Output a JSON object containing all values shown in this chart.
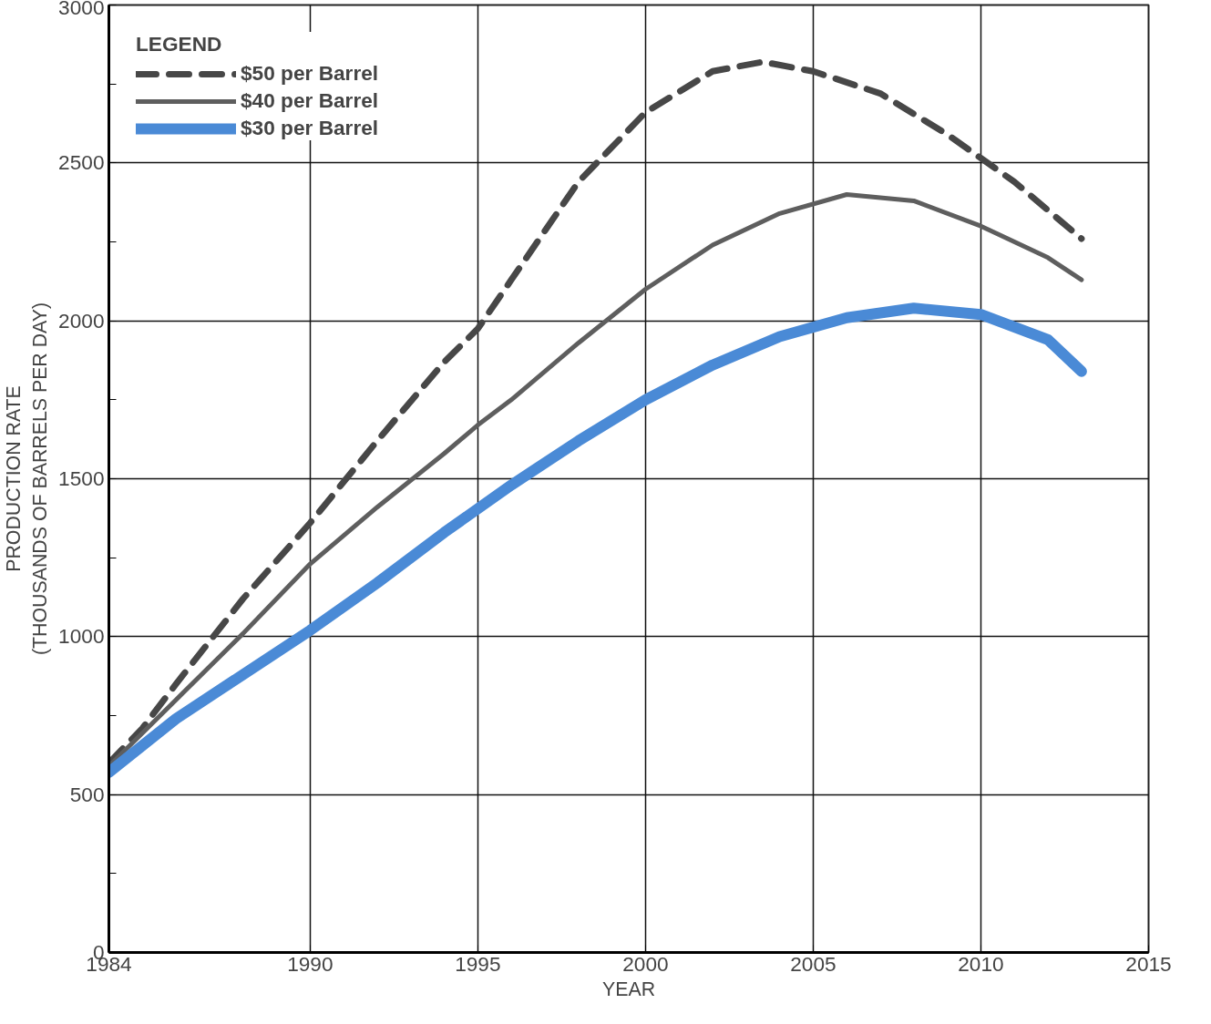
{
  "chart_data": {
    "type": "line",
    "xlabel": "YEAR",
    "ylabel": "PRODUCTION RATE\n(THOUSANDS OF BARRELS PER DAY)",
    "legend_title": "LEGEND",
    "legend": "top left",
    "grid": true,
    "xlim": [
      1984,
      2015
    ],
    "xticks": [
      1984,
      1990,
      1995,
      2000,
      2005,
      2010,
      2015
    ],
    "ylim": [
      0,
      3000
    ],
    "yticks": [
      0,
      {
        "value": 250,
        "label": null
      },
      500,
      {
        "value": 750,
        "label": null
      },
      1000,
      {
        "value": 1250,
        "label": null
      },
      1500,
      {
        "value": 1750,
        "label": null
      },
      2000,
      {
        "value": 2250,
        "label": null
      },
      2500,
      {
        "value": 2750,
        "label": null
      },
      3000
    ],
    "series": [
      {
        "name": "$50 per Barrel",
        "color": "#474747",
        "line_style": "dashed",
        "x": [
          1984,
          1985,
          1986,
          1988,
          1990,
          1992,
          1994,
          1995,
          1996,
          1998,
          2000,
          2002,
          2003.5,
          2005,
          2007,
          2009,
          2011,
          2013
        ],
        "values": [
          600,
          710,
          850,
          1120,
          1360,
          1620,
          1870,
          1975,
          2130,
          2440,
          2660,
          2790,
          2820,
          2790,
          2720,
          2590,
          2440,
          2260
        ]
      },
      {
        "name": "$40 per Barrel",
        "color": "#5e5e5e",
        "line_style": "solid",
        "x": [
          1984,
          1986,
          1988,
          1990,
          1992,
          1994,
          1995,
          1996,
          1998,
          2000,
          2002,
          2004,
          2006,
          2008,
          2010,
          2012,
          2013
        ],
        "values": [
          590,
          800,
          1010,
          1230,
          1410,
          1580,
          1670,
          1750,
          1930,
          2100,
          2240,
          2340,
          2400,
          2380,
          2300,
          2200,
          2130
        ]
      },
      {
        "name": "$30 per Barrel",
        "color": "#4a8ad6",
        "line_style": "solid",
        "x": [
          1984,
          1986,
          1988,
          1990,
          1992,
          1994,
          1996,
          1998,
          2000,
          2002,
          2004,
          2006,
          2008,
          2010,
          2012,
          2013
        ],
        "values": [
          570,
          740,
          880,
          1020,
          1170,
          1330,
          1480,
          1620,
          1750,
          1860,
          1950,
          2010,
          2040,
          2020,
          1940,
          1840
        ]
      }
    ]
  }
}
